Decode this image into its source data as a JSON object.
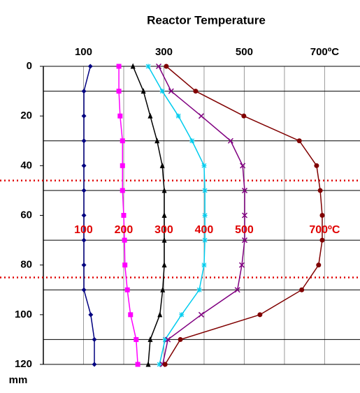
{
  "chart_data": {
    "type": "line",
    "title": "Reactor Temperature",
    "y_label": "mm",
    "x_axis_position": "top",
    "y_inverted": true,
    "xlim": [
      0,
      788
    ],
    "xticks": [
      100,
      300,
      500,
      {
        "value": 700,
        "label": "700ºC"
      }
    ],
    "x_minor_gridlines": [
      0,
      200,
      400,
      600
    ],
    "ylim": [
      0,
      120
    ],
    "yticks": [
      0,
      20,
      40,
      60,
      80,
      100,
      120
    ],
    "y_minor_gridlines": [
      10,
      30,
      50,
      70,
      90,
      110
    ],
    "reference_lines": {
      "color": "#e00000",
      "values": [
        46,
        85
      ]
    },
    "inline_labels": {
      "color": "#e00000",
      "depth": 66,
      "labels": [
        {
          "value": 100,
          "label": "100"
        },
        {
          "value": 200,
          "label": "200"
        },
        {
          "value": 300,
          "label": "300"
        },
        {
          "value": 400,
          "label": "400"
        },
        {
          "value": 500,
          "label": "500"
        },
        {
          "value": 700,
          "label": "700ºC"
        }
      ]
    },
    "y": [
      0,
      10,
      20,
      30,
      40,
      50,
      60,
      70,
      80,
      90,
      100,
      110,
      120
    ],
    "series": [
      {
        "color": "#000080",
        "marker": "diamond",
        "values": [
          117,
          101,
          101,
          101,
          101,
          101,
          101,
          101,
          101,
          101,
          118,
          127,
          127
        ]
      },
      {
        "color": "#ff00ff",
        "marker": "square",
        "values": [
          188,
          188,
          191,
          197,
          197,
          197,
          200,
          202,
          203,
          209,
          217,
          231,
          235
        ]
      },
      {
        "color": "#000000",
        "marker": "triangle",
        "values": [
          223,
          249,
          266,
          283,
          296,
          301,
          301,
          301,
          301,
          297,
          290,
          266,
          261
        ]
      },
      {
        "color": "#00ccee",
        "marker": "star",
        "values": [
          261,
          296,
          336,
          370,
          400,
          402,
          402,
          402,
          400,
          388,
          344,
          303,
          289
        ]
      },
      {
        "color": "#800080",
        "marker": "cross",
        "values": [
          287,
          318,
          393,
          466,
          496,
          501,
          501,
          501,
          494,
          483,
          393,
          310,
          297
        ]
      },
      {
        "color": "#800000",
        "marker": "circle",
        "values": [
          306,
          379,
          499,
          637,
          680,
          689,
          694,
          694,
          685,
          643,
          539,
          341,
          303
        ]
      }
    ]
  }
}
